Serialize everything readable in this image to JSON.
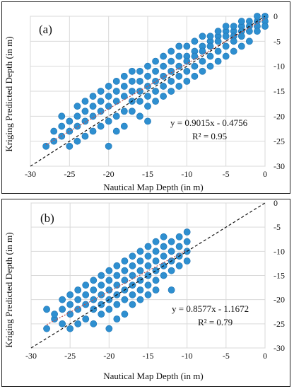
{
  "chart_data": [
    {
      "type": "scatter",
      "panel_label": "(a)",
      "xlabel": "Nautical Map Depth (in m)",
      "ylabel": "Kriging Predicted  Depth (in m)",
      "xlim": [
        -30,
        0
      ],
      "ylim": [
        -30,
        0
      ],
      "xticks": [
        -30,
        -25,
        -20,
        -15,
        -10,
        -5,
        0
      ],
      "yticks": [
        -30,
        -25,
        -20,
        -15,
        -10,
        -5,
        0
      ],
      "grid": true,
      "equation": "y = 0.9015x - 0.4756",
      "r_squared": "R² = 0.95",
      "trend": {
        "slope": 0.9015,
        "intercept": -0.4756
      },
      "one_to_one_line": true,
      "point_color": "#2e8fd0",
      "x_range_of_points": [
        -28,
        0
      ],
      "points": [
        [
          -28,
          -26
        ],
        [
          -27,
          -23
        ],
        [
          -27,
          -25
        ],
        [
          -26,
          -22
        ],
        [
          -26,
          -24
        ],
        [
          -26,
          -20
        ],
        [
          -25,
          -23
        ],
        [
          -25,
          -26
        ],
        [
          -25,
          -21
        ],
        [
          -24,
          -20
        ],
        [
          -24,
          -22
        ],
        [
          -24,
          -18
        ],
        [
          -24,
          -25
        ],
        [
          -23,
          -19
        ],
        [
          -23,
          -21
        ],
        [
          -23,
          -17
        ],
        [
          -23,
          -24
        ],
        [
          -22,
          -18
        ],
        [
          -22,
          -20
        ],
        [
          -22,
          -16
        ],
        [
          -22,
          -23
        ],
        [
          -21,
          -17
        ],
        [
          -21,
          -19
        ],
        [
          -21,
          -15
        ],
        [
          -21,
          -22
        ],
        [
          -20,
          -16
        ],
        [
          -20,
          -18
        ],
        [
          -20,
          -14
        ],
        [
          -20,
          -21
        ],
        [
          -20,
          -26
        ],
        [
          -19,
          -15
        ],
        [
          -19,
          -17
        ],
        [
          -19,
          -13
        ],
        [
          -19,
          -20
        ],
        [
          -19,
          -23
        ],
        [
          -18,
          -14
        ],
        [
          -18,
          -16
        ],
        [
          -18,
          -12
        ],
        [
          -18,
          -19
        ],
        [
          -18,
          -22
        ],
        [
          -17,
          -13
        ],
        [
          -17,
          -15
        ],
        [
          -17,
          -17
        ],
        [
          -17,
          -19
        ],
        [
          -17,
          -11
        ],
        [
          -16,
          -13
        ],
        [
          -16,
          -15
        ],
        [
          -16,
          -17
        ],
        [
          -16,
          -11
        ],
        [
          -16,
          -20
        ],
        [
          -15,
          -12
        ],
        [
          -15,
          -14
        ],
        [
          -15,
          -16
        ],
        [
          -15,
          -10
        ],
        [
          -15,
          -18
        ],
        [
          -15,
          -21
        ],
        [
          -14,
          -11
        ],
        [
          -14,
          -13
        ],
        [
          -14,
          -15
        ],
        [
          -14,
          -9
        ],
        [
          -14,
          -17
        ],
        [
          -13,
          -10
        ],
        [
          -13,
          -12
        ],
        [
          -13,
          -14
        ],
        [
          -13,
          -8
        ],
        [
          -13,
          -16
        ],
        [
          -12,
          -9
        ],
        [
          -12,
          -11
        ],
        [
          -12,
          -13
        ],
        [
          -12,
          -7
        ],
        [
          -12,
          -15
        ],
        [
          -11,
          -8
        ],
        [
          -11,
          -10
        ],
        [
          -11,
          -12
        ],
        [
          -11,
          -6
        ],
        [
          -11,
          -14
        ],
        [
          -10,
          -8
        ],
        [
          -10,
          -9
        ],
        [
          -10,
          -11
        ],
        [
          -10,
          -6
        ],
        [
          -10,
          -13
        ],
        [
          -9,
          -7
        ],
        [
          -9,
          -8
        ],
        [
          -9,
          -10
        ],
        [
          -9,
          -5
        ],
        [
          -9,
          -12
        ],
        [
          -8,
          -6
        ],
        [
          -8,
          -7
        ],
        [
          -8,
          -9
        ],
        [
          -8,
          -4
        ],
        [
          -8,
          -11
        ],
        [
          -7,
          -5
        ],
        [
          -7,
          -6
        ],
        [
          -7,
          -8
        ],
        [
          -7,
          -4
        ],
        [
          -7,
          -10
        ],
        [
          -6,
          -4
        ],
        [
          -6,
          -5
        ],
        [
          -6,
          -7
        ],
        [
          -6,
          -3
        ],
        [
          -6,
          -9
        ],
        [
          -5,
          -3
        ],
        [
          -5,
          -4
        ],
        [
          -5,
          -6
        ],
        [
          -5,
          -2
        ],
        [
          -5,
          -8
        ],
        [
          -4,
          -3
        ],
        [
          -4,
          -4
        ],
        [
          -4,
          -5
        ],
        [
          -4,
          -2
        ],
        [
          -4,
          -7
        ],
        [
          -3,
          -2
        ],
        [
          -3,
          -3
        ],
        [
          -3,
          -4
        ],
        [
          -3,
          -1
        ],
        [
          -3,
          -6
        ],
        [
          -2,
          -1
        ],
        [
          -2,
          -2
        ],
        [
          -2,
          -3
        ],
        [
          -2,
          -5
        ],
        [
          -1,
          -1
        ],
        [
          -1,
          -2
        ],
        [
          -1,
          -3
        ],
        [
          -1,
          0
        ],
        [
          0,
          0
        ],
        [
          0,
          -1
        ],
        [
          0,
          -2
        ]
      ]
    },
    {
      "type": "scatter",
      "panel_label": "(b)",
      "xlabel": "Nautical Map Depth (in m)",
      "ylabel": "Kriging Predicted Depth (in m)",
      "xlim": [
        -30,
        0
      ],
      "ylim": [
        -30,
        0
      ],
      "xticks": [
        -30,
        -25,
        -20,
        -15,
        -10,
        -5,
        0
      ],
      "yticks": [
        -30,
        -25,
        -20,
        -15,
        -10,
        -5,
        0
      ],
      "grid": true,
      "equation": "y = 0.8577x - 1.1672",
      "r_squared": "R² = 0.79",
      "trend": {
        "slope": 0.8577,
        "intercept": -1.1672
      },
      "one_to_one_line": true,
      "point_color": "#2e8fd0",
      "x_range_of_points": [
        -28,
        -10
      ],
      "points": [
        [
          -28,
          -26
        ],
        [
          -28,
          -22
        ],
        [
          -27,
          -24
        ],
        [
          -27,
          -23
        ],
        [
          -26,
          -25
        ],
        [
          -26,
          -22
        ],
        [
          -26,
          -20
        ],
        [
          -25,
          -23
        ],
        [
          -25,
          -26
        ],
        [
          -25,
          -21
        ],
        [
          -25,
          -19
        ],
        [
          -24,
          -22
        ],
        [
          -24,
          -20
        ],
        [
          -24,
          -18
        ],
        [
          -24,
          -25
        ],
        [
          -23,
          -21
        ],
        [
          -23,
          -19
        ],
        [
          -23,
          -17
        ],
        [
          -23,
          -24
        ],
        [
          -22,
          -20
        ],
        [
          -22,
          -18
        ],
        [
          -22,
          -16
        ],
        [
          -22,
          -22
        ],
        [
          -22,
          -25
        ],
        [
          -21,
          -19
        ],
        [
          -21,
          -17
        ],
        [
          -21,
          -15
        ],
        [
          -21,
          -21
        ],
        [
          -21,
          -23
        ],
        [
          -20,
          -18
        ],
        [
          -20,
          -16
        ],
        [
          -20,
          -14
        ],
        [
          -20,
          -20
        ],
        [
          -20,
          -22
        ],
        [
          -20,
          -26
        ],
        [
          -19,
          -17
        ],
        [
          -19,
          -15
        ],
        [
          -19,
          -13
        ],
        [
          -19,
          -19
        ],
        [
          -19,
          -21
        ],
        [
          -19,
          -24
        ],
        [
          -18,
          -16
        ],
        [
          -18,
          -14
        ],
        [
          -18,
          -12
        ],
        [
          -18,
          -18
        ],
        [
          -18,
          -20
        ],
        [
          -18,
          -23
        ],
        [
          -17,
          -15
        ],
        [
          -17,
          -13
        ],
        [
          -17,
          -17
        ],
        [
          -17,
          -11
        ],
        [
          -17,
          -19
        ],
        [
          -17,
          -21
        ],
        [
          -16,
          -14
        ],
        [
          -16,
          -12
        ],
        [
          -16,
          -16
        ],
        [
          -16,
          -10
        ],
        [
          -16,
          -18
        ],
        [
          -16,
          -20
        ],
        [
          -15,
          -13
        ],
        [
          -15,
          -11
        ],
        [
          -15,
          -15
        ],
        [
          -15,
          -9
        ],
        [
          -15,
          -17
        ],
        [
          -15,
          -19
        ],
        [
          -14,
          -12
        ],
        [
          -14,
          -10
        ],
        [
          -14,
          -14
        ],
        [
          -14,
          -8
        ],
        [
          -14,
          -16
        ],
        [
          -14,
          -18
        ],
        [
          -13,
          -11
        ],
        [
          -13,
          -9
        ],
        [
          -13,
          -13
        ],
        [
          -13,
          -7
        ],
        [
          -13,
          -15
        ],
        [
          -12,
          -10
        ],
        [
          -12,
          -8
        ],
        [
          -12,
          -12
        ],
        [
          -12,
          -14
        ],
        [
          -12,
          -18
        ],
        [
          -11,
          -9
        ],
        [
          -11,
          -11
        ],
        [
          -11,
          -13
        ],
        [
          -11,
          -7
        ],
        [
          -10,
          -6
        ],
        [
          -10,
          -8
        ],
        [
          -10,
          -10
        ],
        [
          -10,
          -12
        ]
      ]
    }
  ]
}
